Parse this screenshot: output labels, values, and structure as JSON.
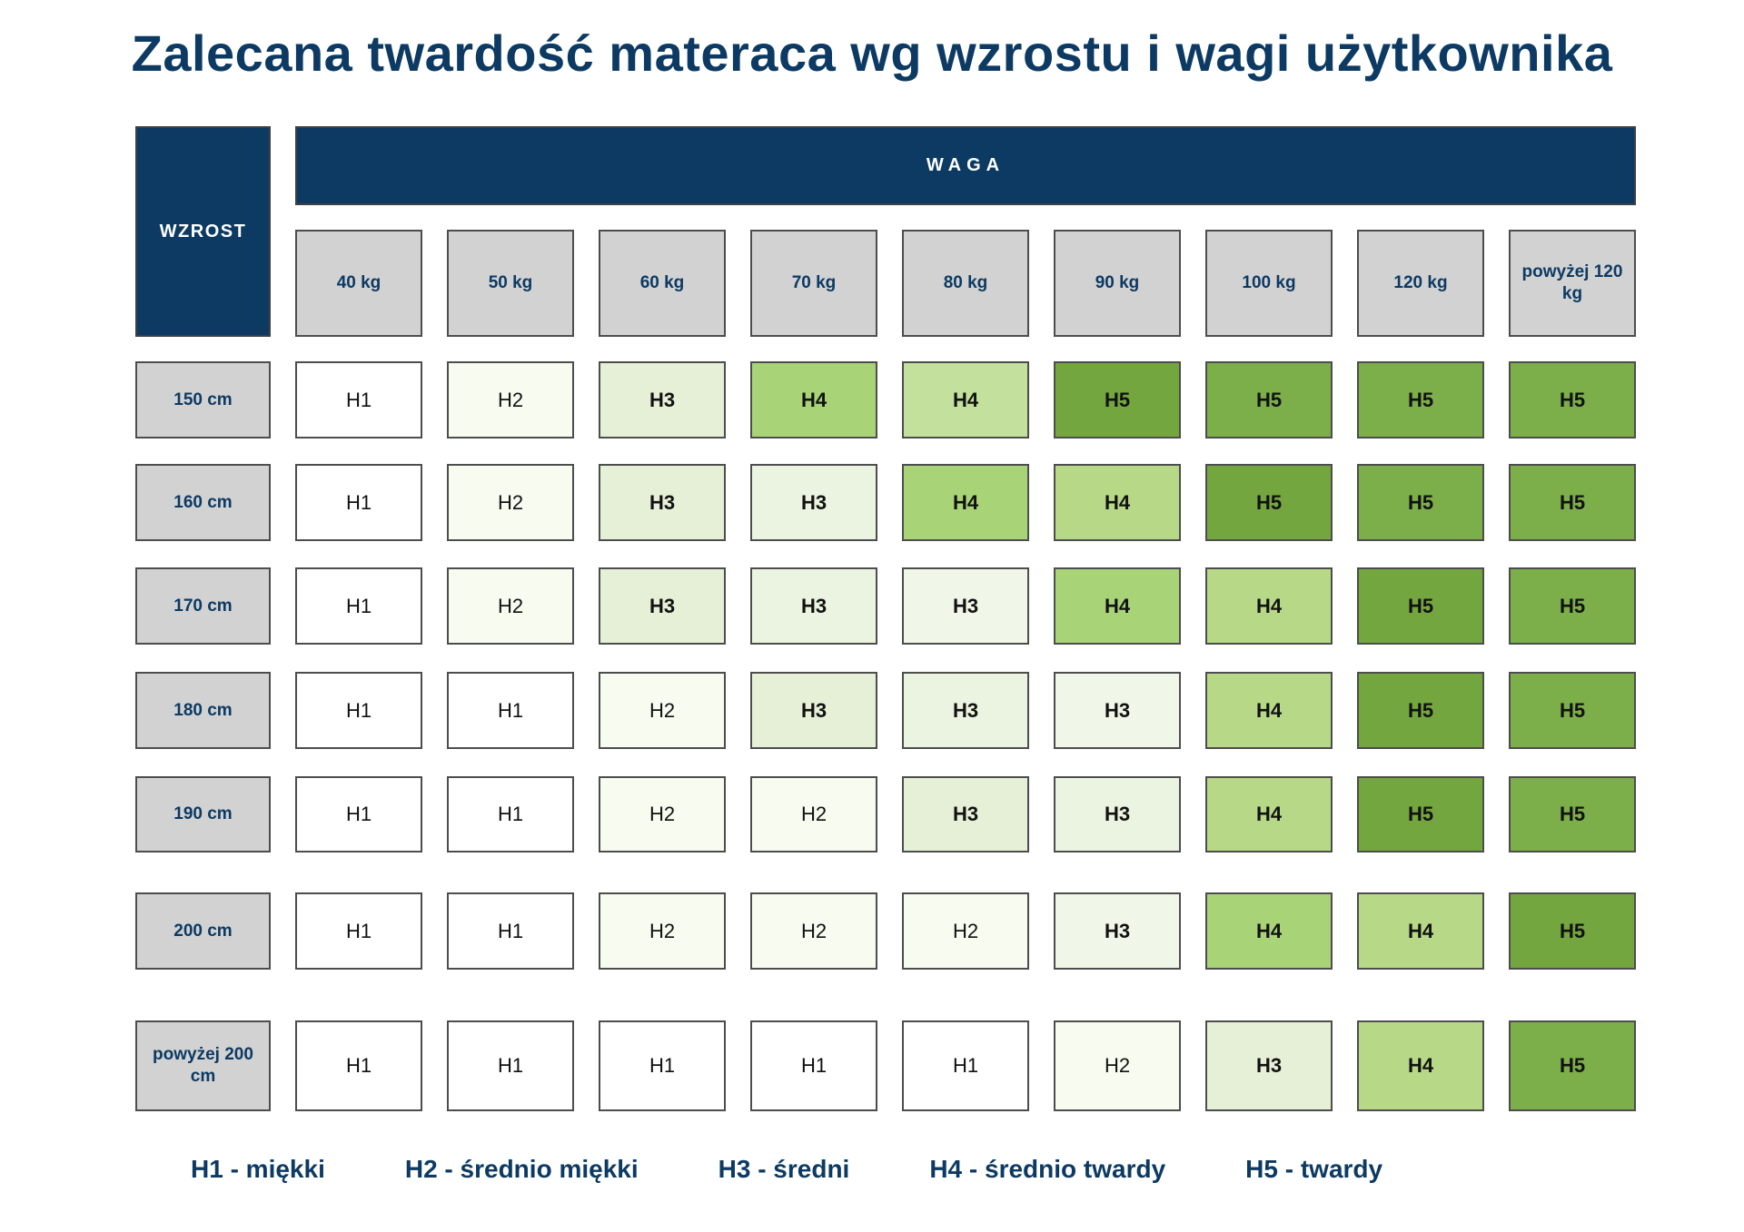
{
  "title": "Zalecana twardość materaca wg wzrostu i wagi użytkownika",
  "table": {
    "corner_label": "WZROST",
    "group_header": "WAGA"
  },
  "chart_data": {
    "type": "heatmap",
    "title": "Zalecana twardość materaca wg wzrostu i wagi użytkownika",
    "x_label": "WAGA",
    "y_label": "WZROST",
    "x_categories": [
      "40 kg",
      "50 kg",
      "60 kg",
      "70 kg",
      "80 kg",
      "90 kg",
      "100 kg",
      "120 kg",
      "powyżej 120 kg"
    ],
    "y_categories": [
      "150 cm",
      "160 cm",
      "170 cm",
      "180 cm",
      "190 cm",
      "200 cm",
      "powyżej 200 cm"
    ],
    "values": [
      [
        "H1",
        "H2",
        "H3",
        "H4",
        "H4",
        "H5",
        "H5",
        "H5",
        "H5"
      ],
      [
        "H1",
        "H2",
        "H3",
        "H3",
        "H4",
        "H4",
        "H5",
        "H5",
        "H5"
      ],
      [
        "H1",
        "H2",
        "H3",
        "H3",
        "H3",
        "H4",
        "H4",
        "H5",
        "H5"
      ],
      [
        "H1",
        "H1",
        "H2",
        "H3",
        "H3",
        "H3",
        "H4",
        "H5",
        "H5"
      ],
      [
        "H1",
        "H1",
        "H2",
        "H2",
        "H3",
        "H3",
        "H4",
        "H5",
        "H5"
      ],
      [
        "H1",
        "H1",
        "H2",
        "H2",
        "H2",
        "H3",
        "H4",
        "H4",
        "H5"
      ],
      [
        "H1",
        "H1",
        "H1",
        "H1",
        "H1",
        "H2",
        "H3",
        "H4",
        "H5"
      ]
    ],
    "cell_colors": [
      [
        "#ffffff",
        "#f7fbf0",
        "#e6f0d7",
        "#a9d377",
        "#c3e09c",
        "#74a63f",
        "#7cae4a",
        "#7cae4a",
        "#7cae4a"
      ],
      [
        "#ffffff",
        "#f7fbf0",
        "#e6f0d7",
        "#ebf4e0",
        "#a9d377",
        "#b7d987",
        "#74a63f",
        "#7cae4a",
        "#7cae4a"
      ],
      [
        "#ffffff",
        "#f7fbf0",
        "#e6f0d7",
        "#ebf4e0",
        "#f0f7e8",
        "#a9d377",
        "#b7d987",
        "#74a63f",
        "#7cae4a"
      ],
      [
        "#ffffff",
        "#ffffff",
        "#f7fbf0",
        "#e6f0d7",
        "#ebf4e0",
        "#f0f7e8",
        "#b7d987",
        "#74a63f",
        "#7cae4a"
      ],
      [
        "#ffffff",
        "#ffffff",
        "#f7fbf0",
        "#f7fbf0",
        "#e6f0d7",
        "#ebf4e0",
        "#b7d987",
        "#74a63f",
        "#7cae4a"
      ],
      [
        "#ffffff",
        "#ffffff",
        "#f7fbf0",
        "#f7fbf0",
        "#f7fbf0",
        "#f0f7e8",
        "#a9d377",
        "#b7d987",
        "#74a63f"
      ],
      [
        "#ffffff",
        "#ffffff",
        "#ffffff",
        "#ffffff",
        "#ffffff",
        "#f7fbf0",
        "#e6f0d7",
        "#b7d987",
        "#7cae4a"
      ]
    ],
    "legend": [
      "H1 - miękki",
      "H2 - średnio miękki",
      "H3 - średni",
      "H4 - średnio twardy",
      "H5 - twardy"
    ],
    "bold_values": [
      "H3",
      "H4",
      "H5"
    ]
  },
  "colors": {
    "navy": "#0d3a63",
    "header_gray": "#d2d2d2",
    "cell_border": "#4d4d4d",
    "text_dark": "#111111"
  }
}
